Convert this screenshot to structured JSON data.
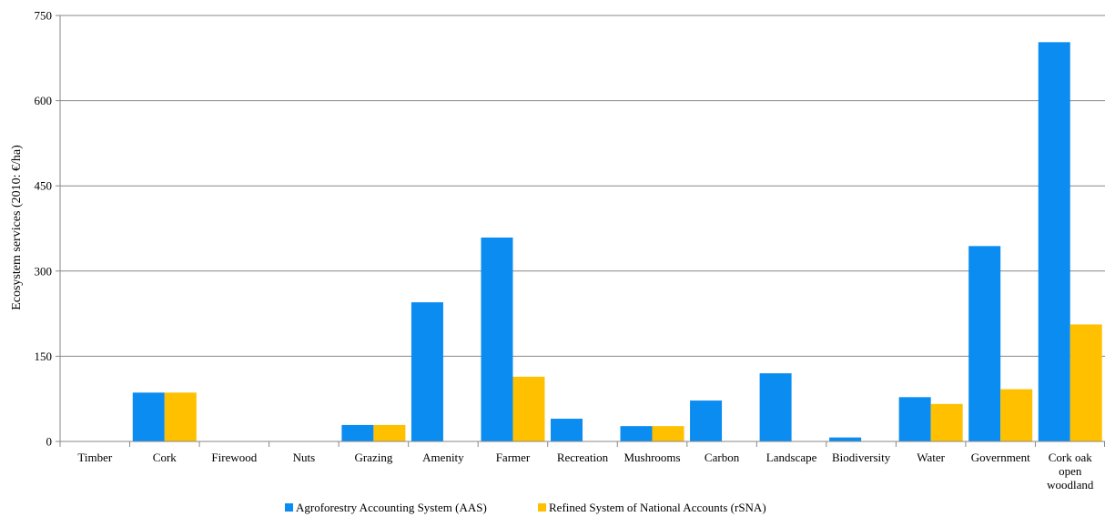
{
  "chart_data": {
    "type": "bar",
    "ylabel": "Ecosystem services (2010: €/ha)",
    "ylim": [
      0,
      750
    ],
    "yticks": [
      0,
      150,
      300,
      450,
      600,
      750
    ],
    "ytick_labels": [
      "0",
      "150",
      "300",
      "450",
      "600",
      "750"
    ],
    "grid": "horizontal",
    "legend_position": "bottom-center",
    "categories": [
      [
        "Timber"
      ],
      [
        "Cork"
      ],
      [
        "Firewood"
      ],
      [
        "Nuts"
      ],
      [
        "Grazing"
      ],
      [
        "Amenity"
      ],
      [
        "Farmer"
      ],
      [
        "Recreation"
      ],
      [
        "Mushrooms"
      ],
      [
        "Carbon"
      ],
      [
        "Landscape"
      ],
      [
        "Biodiversity"
      ],
      [
        "Water"
      ],
      [
        "Government"
      ],
      [
        "Cork oak",
        "open",
        "woodland"
      ]
    ],
    "series": [
      {
        "name": "Agroforestry Accounting System (AAS)",
        "color": "#0B8CF0",
        "values": [
          0,
          86,
          0,
          0,
          29,
          245,
          359,
          40,
          27,
          72,
          120,
          7,
          78,
          344,
          703
        ]
      },
      {
        "name": "Refined System of National Accounts (rSNA)",
        "color": "#FFC000",
        "values": [
          0,
          86,
          0,
          0,
          29,
          0,
          114,
          0,
          27,
          0,
          0,
          0,
          66,
          92,
          206
        ]
      }
    ]
  }
}
